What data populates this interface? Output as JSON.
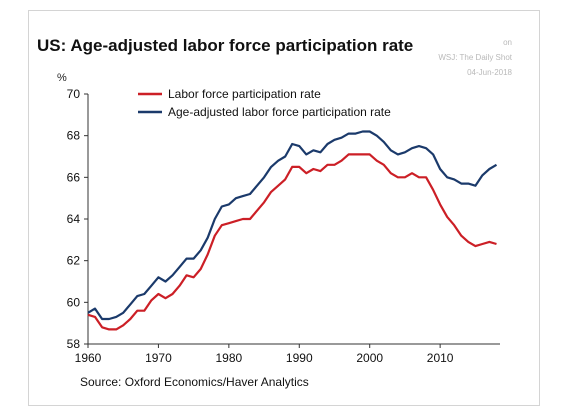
{
  "header": {
    "title": "US: Age-adjusted labor force participation rate",
    "credit_line1": "on",
    "credit_line2": "WSJ: The Daily Shot",
    "credit_line3": "04-Jun-2018"
  },
  "footer": {
    "source": "Source: Oxford Economics/Haver Analytics"
  },
  "chart_data": {
    "type": "line",
    "title": "US: Age-adjusted labor force participation rate",
    "ylabel": "%",
    "xlabel": "",
    "xlim": [
      1960,
      2018.5
    ],
    "ylim": [
      58,
      70
    ],
    "x_ticks": [
      1960,
      1970,
      1980,
      1990,
      2000,
      2010
    ],
    "y_ticks": [
      58,
      60,
      62,
      64,
      66,
      68,
      70
    ],
    "grid": false,
    "legend_position": "top-left",
    "colors": {
      "lfpr": "#cc1f26",
      "age_adjusted": "#1b3a6b"
    },
    "series": [
      {
        "name": "Labor force participation rate",
        "x": [
          1960,
          1961,
          1962,
          1963,
          1964,
          1965,
          1966,
          1967,
          1968,
          1969,
          1970,
          1971,
          1972,
          1973,
          1974,
          1975,
          1976,
          1977,
          1978,
          1979,
          1980,
          1981,
          1982,
          1983,
          1984,
          1985,
          1986,
          1987,
          1988,
          1989,
          1990,
          1991,
          1992,
          1993,
          1994,
          1995,
          1996,
          1997,
          1998,
          1999,
          2000,
          2001,
          2002,
          2003,
          2004,
          2005,
          2006,
          2007,
          2008,
          2009,
          2010,
          2011,
          2012,
          2013,
          2014,
          2015,
          2016,
          2017,
          2018
        ],
        "values": [
          59.4,
          59.3,
          58.8,
          58.7,
          58.7,
          58.9,
          59.2,
          59.6,
          59.6,
          60.1,
          60.4,
          60.2,
          60.4,
          60.8,
          61.3,
          61.2,
          61.6,
          62.3,
          63.2,
          63.7,
          63.8,
          63.9,
          64.0,
          64.0,
          64.4,
          64.8,
          65.3,
          65.6,
          65.9,
          66.5,
          66.5,
          66.2,
          66.4,
          66.3,
          66.6,
          66.6,
          66.8,
          67.1,
          67.1,
          67.1,
          67.1,
          66.8,
          66.6,
          66.2,
          66.0,
          66.0,
          66.2,
          66.0,
          66.0,
          65.4,
          64.7,
          64.1,
          63.7,
          63.2,
          62.9,
          62.7,
          62.8,
          62.9,
          62.8
        ]
      },
      {
        "name": "Age-adjusted labor force participation rate",
        "x": [
          1960,
          1961,
          1962,
          1963,
          1964,
          1965,
          1966,
          1967,
          1968,
          1969,
          1970,
          1971,
          1972,
          1973,
          1974,
          1975,
          1976,
          1977,
          1978,
          1979,
          1980,
          1981,
          1982,
          1983,
          1984,
          1985,
          1986,
          1987,
          1988,
          1989,
          1990,
          1991,
          1992,
          1993,
          1994,
          1995,
          1996,
          1997,
          1998,
          1999,
          2000,
          2001,
          2002,
          2003,
          2004,
          2005,
          2006,
          2007,
          2008,
          2009,
          2010,
          2011,
          2012,
          2013,
          2014,
          2015,
          2016,
          2017,
          2018
        ],
        "values": [
          59.5,
          59.7,
          59.2,
          59.2,
          59.3,
          59.5,
          59.9,
          60.3,
          60.4,
          60.8,
          61.2,
          61.0,
          61.3,
          61.7,
          62.1,
          62.1,
          62.5,
          63.1,
          64.0,
          64.6,
          64.7,
          65.0,
          65.1,
          65.2,
          65.6,
          66.0,
          66.5,
          66.8,
          67.0,
          67.6,
          67.5,
          67.1,
          67.3,
          67.2,
          67.6,
          67.8,
          67.9,
          68.1,
          68.1,
          68.2,
          68.2,
          68.0,
          67.7,
          67.3,
          67.1,
          67.2,
          67.4,
          67.5,
          67.4,
          67.1,
          66.4,
          66.0,
          65.9,
          65.7,
          65.7,
          65.6,
          66.1,
          66.4,
          66.6
        ]
      }
    ]
  }
}
